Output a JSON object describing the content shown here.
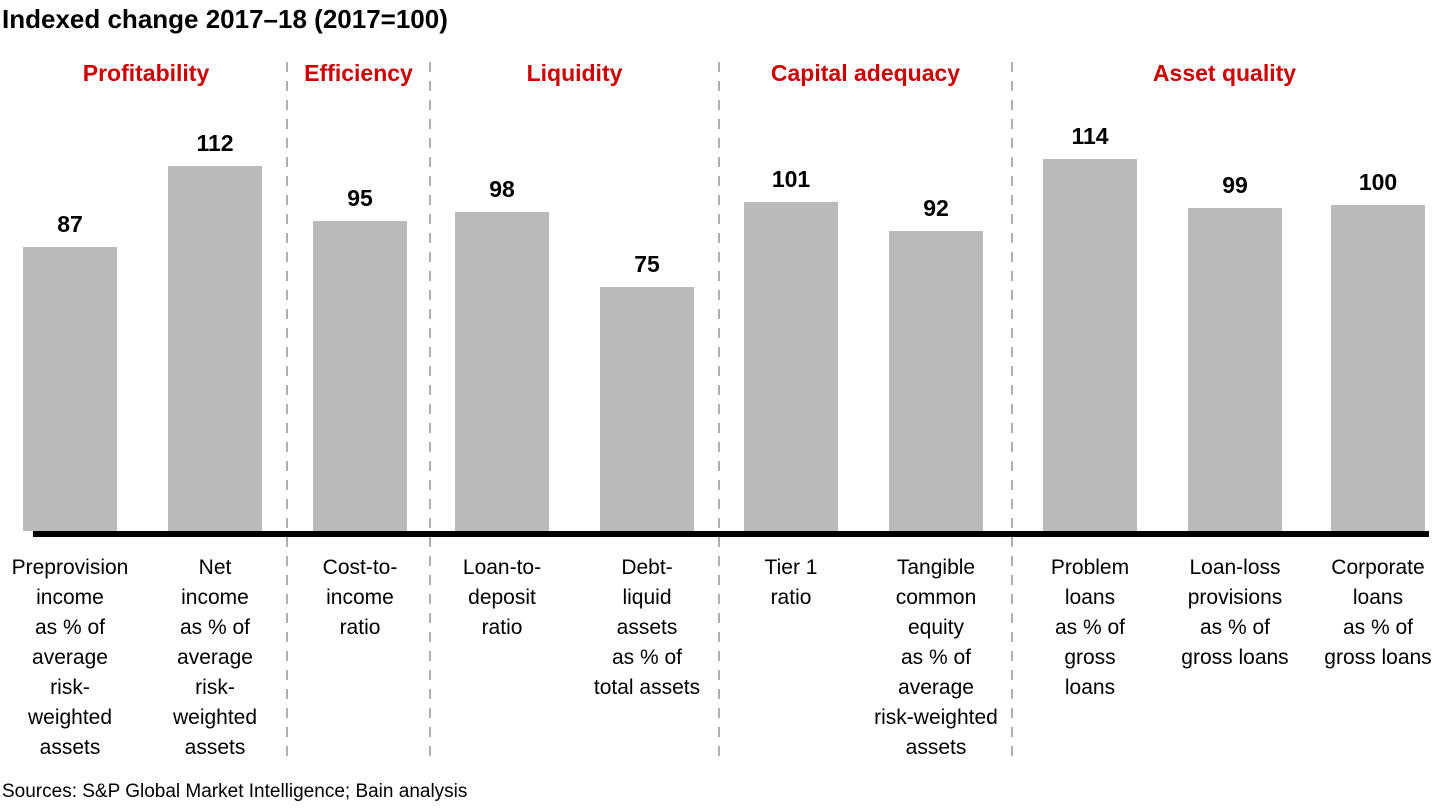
{
  "header": {
    "title": "Indexed change 2017–18 (2017=100)"
  },
  "footer": {
    "source": "Sources: S&P Global Market Intelligence; Bain analysis"
  },
  "chart_data": {
    "type": "bar",
    "title": "Indexed change 2017–18 (2017=100)",
    "index_base": "2017=100",
    "ylim": [
      0,
      120
    ],
    "gridlines": false,
    "legend": "none",
    "bar_color": "#bababa",
    "group_header_color": "#cc0000",
    "axis_color": "#000000",
    "source": "Sources: S&P Global Market Intelligence; Bain analysis",
    "groups": [
      {
        "label": "Profitability",
        "bars": [
          {
            "category": "Preprovision income as % of average risk-weighted assets",
            "category_lines": [
              "Preprovision",
              "income",
              "as % of",
              "average",
              "risk-",
              "weighted",
              "assets"
            ],
            "value": 87
          },
          {
            "category": "Net income as % of average risk-weighted assets",
            "category_lines": [
              "Net",
              "income",
              "as % of",
              "average",
              "risk-",
              "weighted",
              "assets"
            ],
            "value": 112
          }
        ]
      },
      {
        "label": "Efficiency",
        "bars": [
          {
            "category": "Cost-to-income ratio",
            "category_lines": [
              "Cost-to-",
              "income",
              "ratio"
            ],
            "value": 95
          }
        ]
      },
      {
        "label": "Liquidity",
        "bars": [
          {
            "category": "Loan-to-deposit ratio",
            "category_lines": [
              "Loan-to-",
              "deposit",
              "ratio"
            ],
            "value": 98
          },
          {
            "category": "Debt-liquid assets as % of total assets",
            "category_lines": [
              "Debt-",
              "liquid",
              "assets",
              "as % of",
              "total assets"
            ],
            "value": 75
          }
        ]
      },
      {
        "label": "Capital adequacy",
        "bars": [
          {
            "category": "Tier 1 ratio",
            "category_lines": [
              "Tier 1",
              "ratio"
            ],
            "value": 101
          },
          {
            "category": "Tangible common equity as % of average risk-weighted assets",
            "category_lines": [
              "Tangible",
              "common",
              "equity",
              "as % of",
              "average",
              "risk-weighted",
              "assets"
            ],
            "value": 92
          }
        ]
      },
      {
        "label": "Asset quality",
        "bars": [
          {
            "category": "Problem loans as % of gross loans",
            "category_lines": [
              "Problem",
              "loans",
              "as % of",
              "gross",
              "loans"
            ],
            "value": 114
          },
          {
            "category": "Loan-loss provisions as % of gross loans",
            "category_lines": [
              "Loan-loss",
              "provisions",
              "as % of",
              "gross loans"
            ],
            "value": 99
          },
          {
            "category": "Corporate loans as % of gross loans",
            "category_lines": [
              "Corporate",
              "loans",
              "as % of",
              "gross loans"
            ],
            "value": 100
          }
        ]
      }
    ]
  }
}
